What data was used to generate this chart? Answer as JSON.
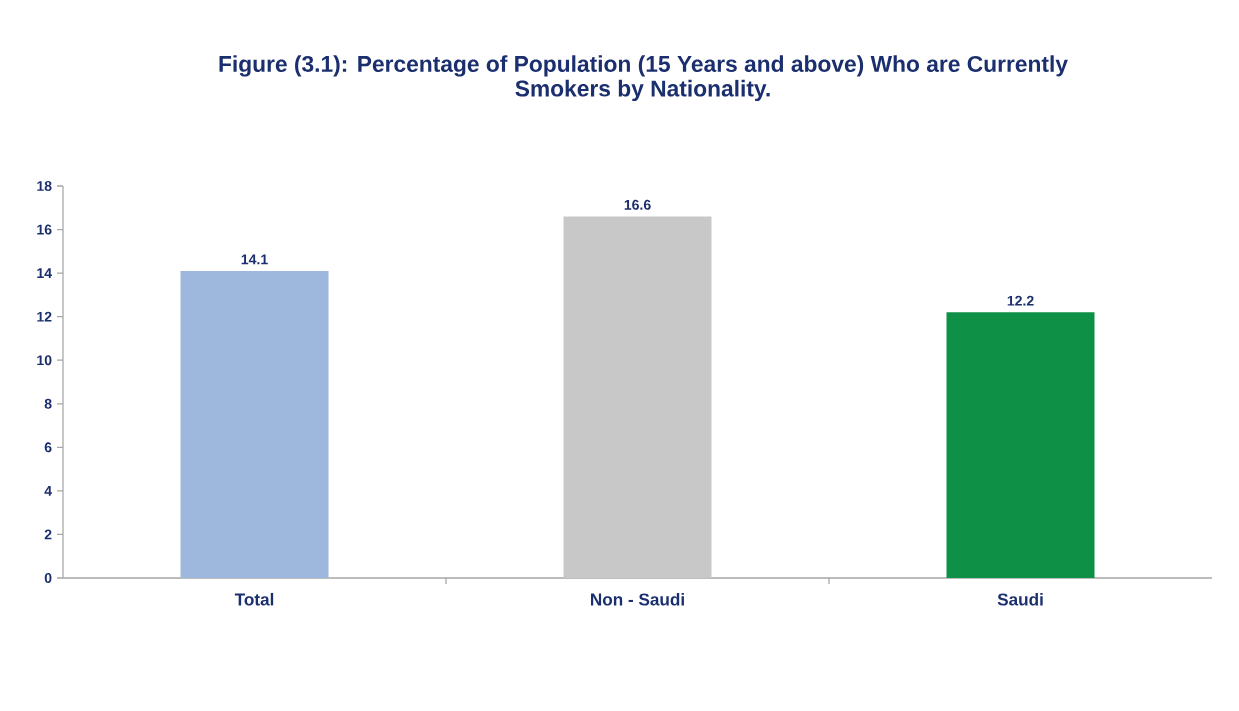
{
  "chart_data": {
    "type": "bar",
    "title": "Figure (3.1): Percentage of Population (15 Years and above) Who are Currently Smokers by Nationality.",
    "categories": [
      "Total",
      "Non - Saudi",
      "Saudi"
    ],
    "values": [
      14.1,
      16.6,
      12.2
    ],
    "colors": [
      "#9db8dc",
      "#c8c8c8",
      "#0e9146"
    ],
    "ylim": [
      0,
      18
    ],
    "yticks": [
      0,
      2,
      4,
      6,
      8,
      10,
      12,
      14,
      16,
      18
    ],
    "data_labels": true
  }
}
